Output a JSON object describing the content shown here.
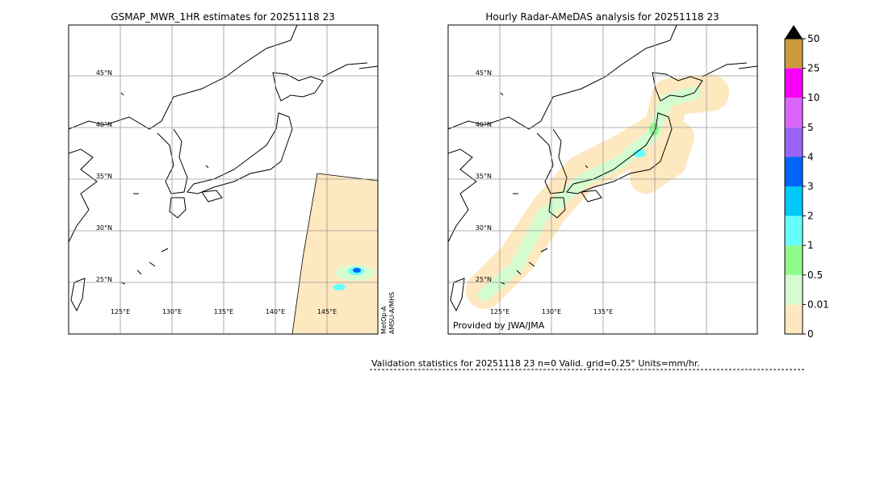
{
  "panels": [
    {
      "title": "GSMAP_MWR_1HR estimates for 20251118 23",
      "lat_labels": [
        "45°N",
        "40°N",
        "35°N",
        "30°N",
        "25°N"
      ],
      "lon_labels": [
        "125°E",
        "130°E",
        "135°E",
        "140°E",
        "145°E"
      ],
      "side_text": [
        "MetOp-A",
        "AMSU-A/MHS"
      ]
    },
    {
      "title": "Hourly Radar-AMeDAS analysis for 20251118 23",
      "lat_labels": [
        "45°N",
        "40°N",
        "35°N",
        "30°N",
        "25°N"
      ],
      "lon_labels": [
        "125°E",
        "130°E",
        "135°E"
      ],
      "credit": "Provided by JWA/JMA"
    }
  ],
  "colorbar": {
    "levels": [
      "0",
      "0.01",
      "0.5",
      "1",
      "2",
      "3",
      "4",
      "5",
      "10",
      "25",
      "50"
    ],
    "colors": [
      "#fee8c0",
      "#d4fcd0",
      "#8efb8a",
      "#66fffc",
      "#00c8fa",
      "#0064fa",
      "#9a64fa",
      "#dc64fa",
      "#fa00fa",
      "#cc9a3c"
    ]
  },
  "validation": "Validation statistics for 20251118 23  n=0 Valid. grid=0.25° Units=mm/hr."
}
